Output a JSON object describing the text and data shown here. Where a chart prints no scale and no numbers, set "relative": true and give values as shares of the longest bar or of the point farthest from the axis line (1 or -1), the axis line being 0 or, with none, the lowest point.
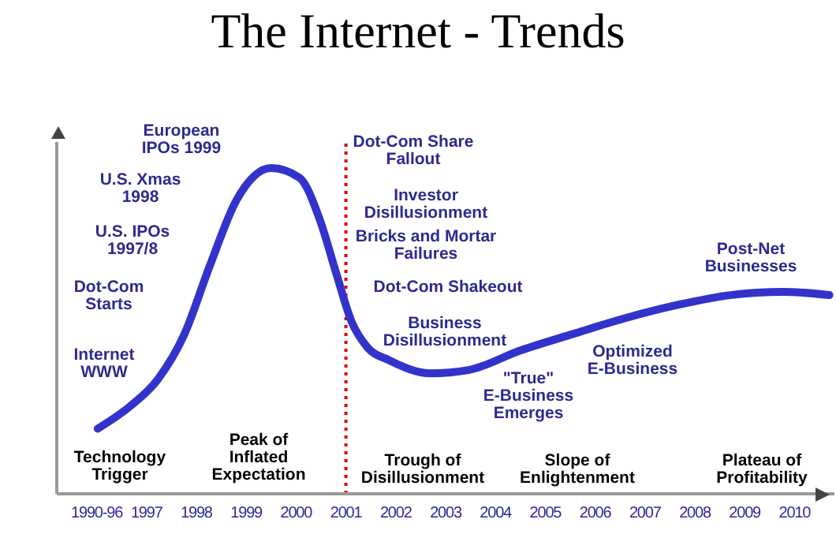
{
  "chart_data": {
    "type": "line",
    "title": "The Internet - Trends",
    "relative": true,
    "x": [
      1996.02,
      1996.68,
      1997.22,
      1997.76,
      1998.27,
      1998.8,
      1999.5,
      2000.07,
      2000.48,
      2000.8,
      2001.11,
      2001.43,
      2001.87,
      2002.7,
      2003.46,
      2004.5,
      2005.54,
      2006.62,
      2007.66,
      2008.71,
      2009.78,
      2010.7
    ],
    "series": [
      {
        "color": "#3333cc",
        "values": [
          0.2,
          0.27,
          0.35,
          0.49,
          0.7,
          0.9,
          1,
          0.97,
          0.84,
          0.68,
          0.53,
          0.45,
          0.41,
          0.37,
          0.38,
          0.44,
          0.49,
          0.54,
          0.58,
          0.61,
          0.62,
          0.61
        ]
      }
    ],
    "xlim": [
      1995.2,
      2010.8
    ],
    "xticks": [
      {
        "value": 1996,
        "label": "1990-96"
      },
      1997,
      1998,
      1999,
      2000,
      2001,
      2002,
      2003,
      2004,
      2005,
      2006,
      2007,
      2008,
      2009,
      2010
    ],
    "ref_lines": [
      {
        "axis": "x",
        "value": 2001,
        "color": "#dd0000",
        "line_style": "dotted"
      }
    ],
    "marker": "none",
    "annotations": [
      "European\nIPOs 1999",
      "U.S. Xmas\n1998",
      "U.S. IPOs\n1997/8",
      "Dot-Com\nStarts",
      "Internet\nWWW",
      "Dot-Com Share\nFallout",
      "Investor\nDisillusionment",
      "Bricks and Mortar\nFailures",
      "Dot-Com Shakeout",
      "Business\nDisillusionment",
      "\"True\"\nE-Business\nEmerges",
      "Optimized\nE-Business",
      "Post-Net\nBusinesses",
      "Technology\nTrigger",
      "Peak of\nInflated\nExpectation",
      "Trough of\nDisillusionment",
      "Slope of\nEnlightenment",
      "Plateau of\nProfitability"
    ]
  }
}
